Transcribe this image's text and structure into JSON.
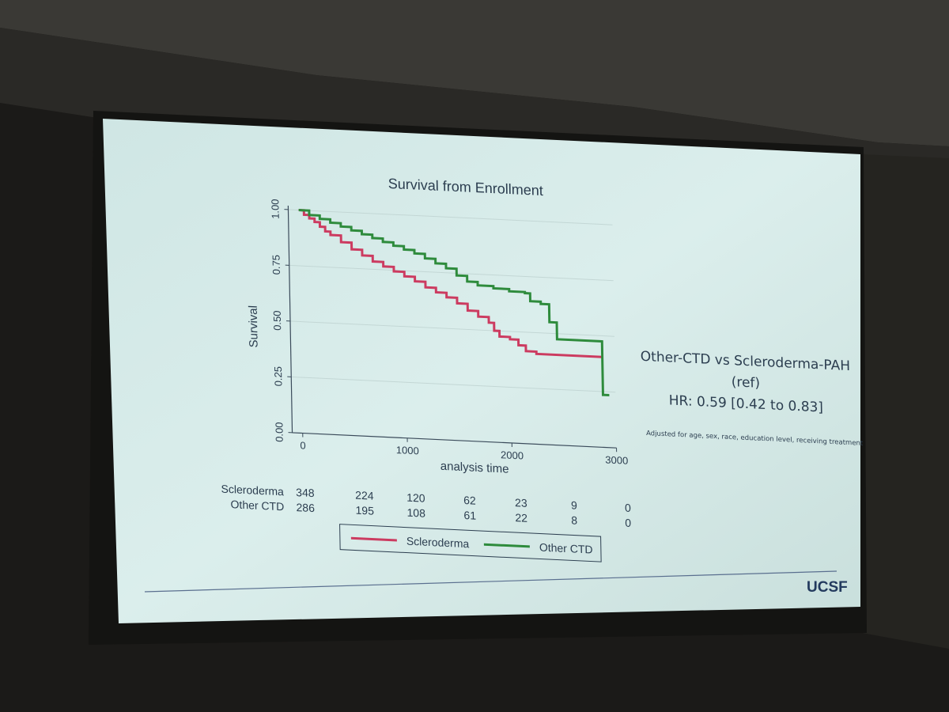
{
  "chart_data": {
    "type": "line",
    "title": "Survival from Enrollment",
    "xlabel": "analysis time",
    "ylabel": "Survival",
    "xlim": [
      -100,
      3000
    ],
    "ylim": [
      0,
      1
    ],
    "x_ticks": [
      "0",
      "1000",
      "2000",
      "3000"
    ],
    "y_ticks": [
      "0.00",
      "0.25",
      "0.50",
      "0.75",
      "1.00"
    ],
    "grid": true,
    "series": [
      {
        "name": "Scleroderma",
        "color": "#cc3b60",
        "points": [
          [
            0,
            1.0
          ],
          [
            50,
            0.98
          ],
          [
            100,
            0.965
          ],
          [
            150,
            0.95
          ],
          [
            200,
            0.93
          ],
          [
            250,
            0.91
          ],
          [
            300,
            0.895
          ],
          [
            400,
            0.865
          ],
          [
            500,
            0.835
          ],
          [
            600,
            0.81
          ],
          [
            700,
            0.785
          ],
          [
            800,
            0.765
          ],
          [
            900,
            0.745
          ],
          [
            1000,
            0.725
          ],
          [
            1100,
            0.705
          ],
          [
            1200,
            0.68
          ],
          [
            1300,
            0.66
          ],
          [
            1400,
            0.64
          ],
          [
            1500,
            0.615
          ],
          [
            1600,
            0.585
          ],
          [
            1700,
            0.56
          ],
          [
            1800,
            0.535
          ],
          [
            1850,
            0.5
          ],
          [
            1900,
            0.475
          ],
          [
            2000,
            0.465
          ],
          [
            2080,
            0.44
          ],
          [
            2150,
            0.415
          ],
          [
            2250,
            0.405
          ],
          [
            2880,
            0.405
          ]
        ]
      },
      {
        "name": "Other CTD",
        "color": "#2e8b3c",
        "points": [
          [
            0,
            1.0
          ],
          [
            100,
            0.98
          ],
          [
            200,
            0.965
          ],
          [
            300,
            0.95
          ],
          [
            400,
            0.935
          ],
          [
            500,
            0.92
          ],
          [
            600,
            0.905
          ],
          [
            700,
            0.89
          ],
          [
            800,
            0.875
          ],
          [
            900,
            0.86
          ],
          [
            1000,
            0.845
          ],
          [
            1100,
            0.83
          ],
          [
            1200,
            0.81
          ],
          [
            1300,
            0.79
          ],
          [
            1400,
            0.77
          ],
          [
            1500,
            0.74
          ],
          [
            1600,
            0.715
          ],
          [
            1700,
            0.7
          ],
          [
            1850,
            0.69
          ],
          [
            2000,
            0.68
          ],
          [
            2150,
            0.675
          ],
          [
            2200,
            0.64
          ],
          [
            2300,
            0.63
          ],
          [
            2380,
            0.55
          ],
          [
            2450,
            0.475
          ],
          [
            2600,
            0.475
          ],
          [
            2860,
            0.475
          ],
          [
            2880,
            0.235
          ],
          [
            2940,
            0.235
          ]
        ]
      }
    ],
    "risk_table": {
      "rows": [
        {
          "label": "Scleroderma",
          "values": [
            "348",
            "224",
            "120",
            "62",
            "23",
            "9",
            "0"
          ]
        },
        {
          "label": "Other CTD",
          "values": [
            "286",
            "195",
            "108",
            "61",
            "22",
            "8",
            "0"
          ]
        }
      ]
    },
    "legend": {
      "position": "bottom",
      "items": [
        {
          "label": "Scleroderma",
          "color": "#cc3b60"
        },
        {
          "label": "Other CTD",
          "color": "#2e8b3c"
        }
      ]
    }
  },
  "annotation": {
    "line1": "Other-CTD vs Scleroderma-PAH",
    "line2": "(ref)",
    "line3": "HR: 0.59 [0.42 to 0.83]",
    "note": "Adjusted for age, sex, race, education level, receiving treatment"
  },
  "logo": "UCSF",
  "colors": {
    "slide_bg": "#d8ebea",
    "text": "#2c3e50",
    "axis": "#3a4a5a",
    "divider": "#5a6f8f",
    "room": "#1b1a18"
  }
}
